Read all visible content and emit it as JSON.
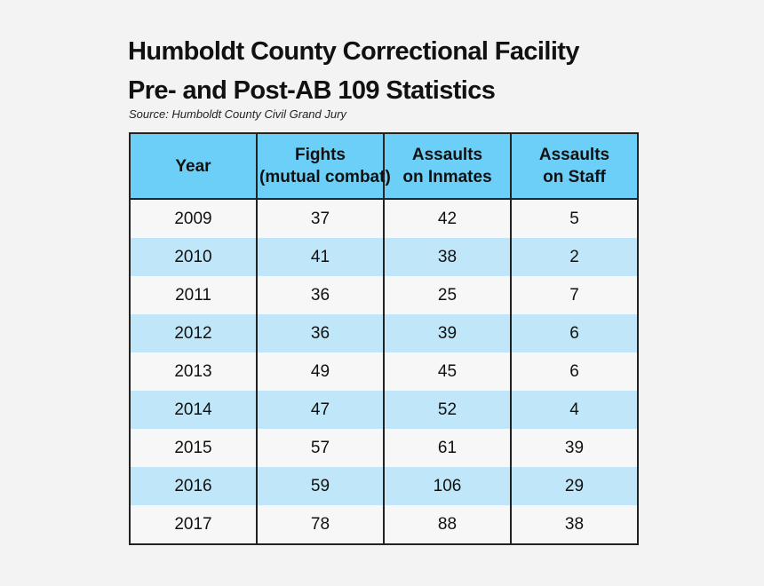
{
  "title_line1": "Humboldt County Correctional Facility",
  "title_line2": "Pre- and Post-AB 109 Statistics",
  "source": "Source: Humboldt County Civil Grand Jury",
  "colors": {
    "header_background": "#6ccff7",
    "row_light": "#f7f7f7",
    "row_blue": "#bfe7f9",
    "page_background": "#f3f3f3"
  },
  "chart_data": {
    "type": "table",
    "title": "Humboldt County Correctional Facility Pre- and Post-AB 109 Statistics",
    "columns": [
      {
        "lines": [
          "Year"
        ]
      },
      {
        "lines": [
          "Fights",
          "(mutual combat)"
        ]
      },
      {
        "lines": [
          "Assaults",
          "on Inmates"
        ]
      },
      {
        "lines": [
          "Assaults",
          "on Staff"
        ]
      }
    ],
    "rows": [
      [
        "2009",
        "37",
        "42",
        "5"
      ],
      [
        "2010",
        "41",
        "38",
        "2"
      ],
      [
        "2011",
        "36",
        "25",
        "7"
      ],
      [
        "2012",
        "36",
        "39",
        "6"
      ],
      [
        "2013",
        "49",
        "45",
        "6"
      ],
      [
        "2014",
        "47",
        "52",
        "4"
      ],
      [
        "2015",
        "57",
        "61",
        "39"
      ],
      [
        "2016",
        "59",
        "106",
        "29"
      ],
      [
        "2017",
        "78",
        "88",
        "38"
      ]
    ]
  }
}
